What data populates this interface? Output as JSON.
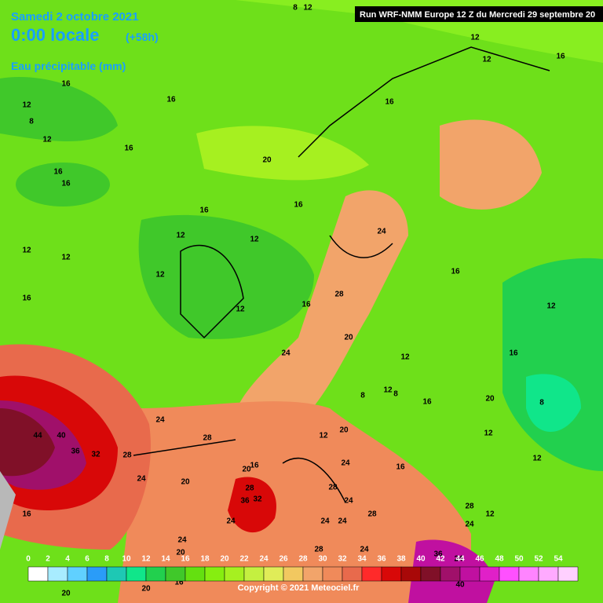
{
  "header": {
    "date": "Samedi 2 octobre 2021",
    "time": "0:00 locale",
    "lead": "(+58h)",
    "field": "Eau précipitable (mm)",
    "run": "Run WRF-NMM Europe 12 Z du Mercredi 29 septembre 20"
  },
  "legend": {
    "ticks": [
      0,
      2,
      4,
      6,
      8,
      10,
      12,
      14,
      16,
      18,
      20,
      22,
      24,
      26,
      28,
      30,
      32,
      34,
      36,
      38,
      40,
      42,
      44,
      46,
      48,
      50,
      52,
      54
    ],
    "colors": [
      "#ffffff",
      "#a8ecff",
      "#60d0ff",
      "#2a9cf8",
      "#1ec8b4",
      "#10e68a",
      "#22d04e",
      "#40c82a",
      "#64e010",
      "#86ee10",
      "#a6f020",
      "#c4f040",
      "#e0ec58",
      "#f2c860",
      "#f2a46a",
      "#f08a5a",
      "#e86a4c",
      "#ff2a2a",
      "#d80808",
      "#a80808",
      "#801028",
      "#a0106a",
      "#c010a0",
      "#e020c8",
      "#ff50ff",
      "#ff84ff",
      "#ffaaff",
      "#ffd0ff"
    ]
  },
  "contour_labels": [
    8,
    12,
    12,
    12,
    16,
    16,
    16,
    16,
    12,
    8,
    12,
    16,
    16,
    16,
    20,
    16,
    16,
    12,
    12,
    12,
    12,
    12,
    24,
    16,
    16,
    12,
    16,
    28,
    12,
    20,
    24,
    12,
    16,
    8,
    12,
    8,
    16,
    20,
    8,
    24,
    44,
    40,
    36,
    32,
    28,
    28,
    12,
    20,
    12,
    12,
    24,
    20,
    16,
    20,
    24,
    16,
    16,
    28,
    36,
    32,
    28,
    24,
    28,
    28,
    12,
    24,
    24,
    24,
    24,
    24,
    20,
    28,
    24,
    36,
    24,
    40,
    20,
    20,
    16
  ],
  "copyright": "Copyright © 2021 Meteociel.fr"
}
